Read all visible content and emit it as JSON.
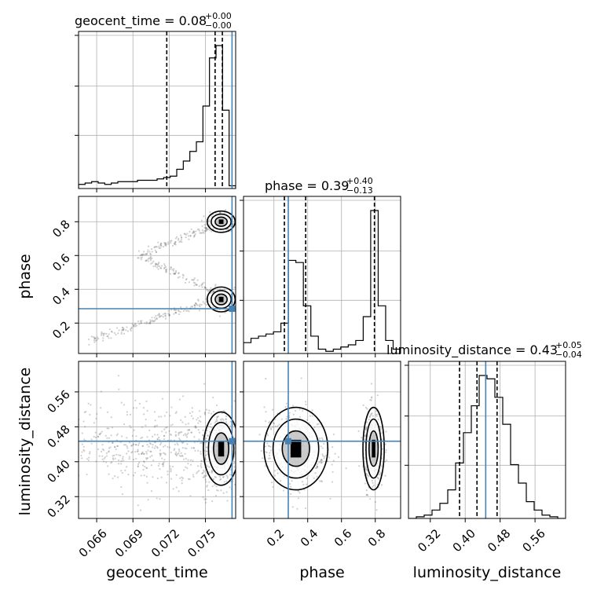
{
  "chart_data": {
    "type": "corner",
    "parameters": [
      "geocent_time",
      "phase",
      "luminosity_distance"
    ],
    "axis_labels": {
      "geocent_time": "geocent_time",
      "phase": "phase",
      "luminosity_distance": "luminosity_distance"
    },
    "ranges": {
      "geocent_time": [
        0.0645,
        0.0775
      ],
      "phase": [
        0.02,
        0.95
      ],
      "luminosity_distance": [
        0.27,
        0.63
      ]
    },
    "ticks": {
      "geocent_time": {
        "values": [
          0.066,
          0.069,
          0.072,
          0.075
        ],
        "labels": [
          "0.066",
          "0.069",
          "0.072",
          "0.075"
        ]
      },
      "phase": {
        "values": [
          0.2,
          0.4,
          0.6,
          0.8
        ],
        "labels": [
          "0.2",
          "0.4",
          "0.6",
          "0.8"
        ]
      },
      "luminosity_distance": {
        "values": [
          0.32,
          0.4,
          0.48,
          0.56
        ],
        "labels": [
          "0.32",
          "0.40",
          "0.48",
          "0.56"
        ]
      }
    },
    "titles": [
      {
        "param": "geocent_time",
        "main": "geocent_time = 0.08",
        "sup": "+0.00",
        "sub": "−0.00"
      },
      {
        "param": "phase",
        "main": "phase = 0.39",
        "sup": "+0.40",
        "sub": "−0.13"
      },
      {
        "param": "luminosity_distance",
        "main": "luminosity_distance = 0.43",
        "sup": "+0.05",
        "sub": "−0.04"
      }
    ],
    "truths": {
      "geocent_time": 0.0772,
      "phase": 0.285,
      "luminosity_distance": 0.447
    },
    "quantiles": {
      "geocent_time": [
        0.0718,
        0.0758,
        0.0764
      ],
      "phase": [
        0.262,
        0.388,
        0.795
      ],
      "luminosity_distance": [
        0.387,
        0.427,
        0.473
      ]
    },
    "histograms": {
      "geocent_time": {
        "bins": [
          0.0645,
          0.0775
        ],
        "counts": [
          3,
          4,
          5,
          4,
          3,
          4,
          5,
          5,
          5,
          6,
          6,
          6,
          7,
          8,
          9,
          14,
          20,
          27,
          34,
          60,
          95,
          104,
          57,
          2
        ]
      },
      "phase": {
        "bins": [
          0.02,
          0.95
        ],
        "counts": [
          5,
          7,
          8,
          9,
          10,
          14,
          43,
          42,
          22,
          8,
          2,
          1,
          2,
          3,
          4,
          6,
          17,
          66,
          22,
          6,
          2
        ]
      },
      "luminosity_distance": {
        "bins": [
          0.27,
          0.63
        ],
        "counts": [
          0,
          1,
          2,
          5,
          9,
          17,
          33,
          51,
          67,
          85,
          83,
          72,
          56,
          32,
          21,
          10,
          5,
          2,
          1,
          0
        ]
      }
    },
    "grid": true,
    "truth_color": "#4682b4"
  }
}
